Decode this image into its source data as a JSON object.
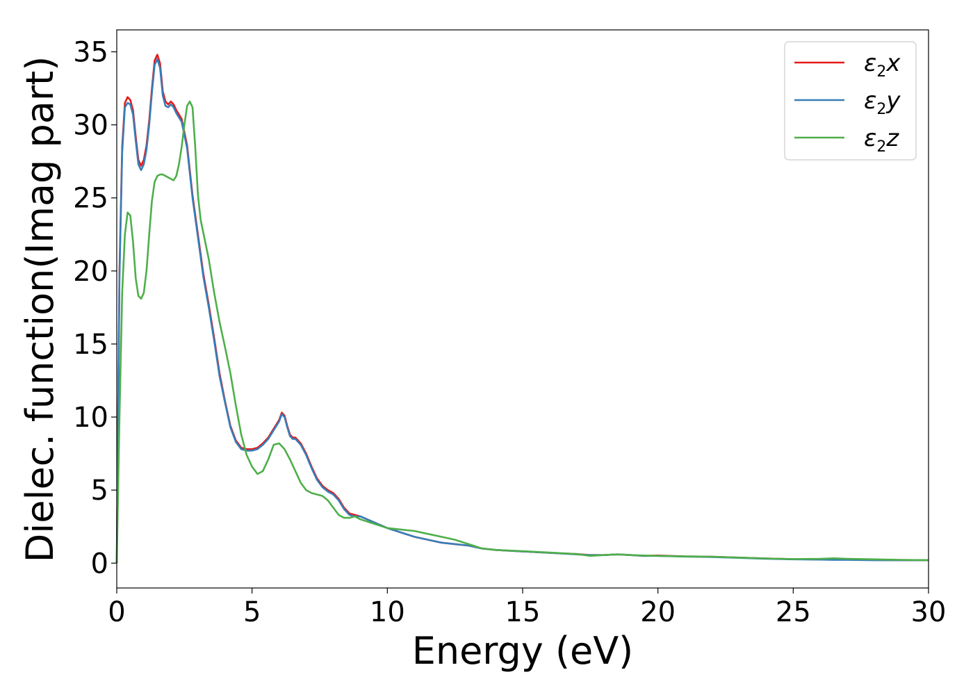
{
  "chart_data": {
    "type": "line",
    "xlabel": "Energy (eV)",
    "ylabel": "Dielec. function(Imag part)",
    "xlim": [
      0,
      30
    ],
    "ylim": [
      -1.7,
      36.5
    ],
    "xticks": [
      0,
      5,
      10,
      15,
      20,
      25,
      30
    ],
    "yticks": [
      0,
      5,
      10,
      15,
      20,
      25,
      30,
      35
    ],
    "grid": false,
    "legend_position": "top-right",
    "series": [
      {
        "name": "ε2x",
        "symbol": "ε",
        "sub": "2",
        "axis": "x",
        "color": "#e41a1c",
        "x": [
          0,
          0.1,
          0.2,
          0.3,
          0.4,
          0.5,
          0.6,
          0.7,
          0.8,
          0.9,
          1.0,
          1.1,
          1.2,
          1.3,
          1.4,
          1.5,
          1.6,
          1.7,
          1.8,
          1.9,
          2.0,
          2.1,
          2.2,
          2.4,
          2.6,
          2.8,
          3.0,
          3.2,
          3.4,
          3.6,
          3.8,
          4.0,
          4.2,
          4.4,
          4.6,
          4.8,
          5.0,
          5.2,
          5.4,
          5.6,
          5.8,
          6.0,
          6.1,
          6.2,
          6.3,
          6.4,
          6.5,
          6.6,
          6.8,
          7.0,
          7.2,
          7.4,
          7.6,
          7.8,
          8.0,
          8.2,
          8.4,
          8.6,
          8.8,
          9.0,
          9.5,
          10.0,
          10.5,
          11.0,
          11.5,
          12.0,
          12.5,
          13.0,
          13.5,
          14.0,
          15.0,
          16.0,
          17.0,
          17.5,
          18.0,
          18.5,
          19.0,
          19.5,
          20.0,
          21.0,
          22.0,
          23.0,
          24.0,
          25.0,
          26.0,
          26.5,
          27.0,
          28.0,
          29.0,
          30.0
        ],
        "y": [
          0,
          20,
          28.5,
          31.5,
          31.9,
          31.7,
          31,
          29.2,
          27.6,
          27.2,
          27.6,
          28.6,
          30.3,
          32.5,
          34.4,
          34.8,
          34.2,
          32.3,
          31.6,
          31.4,
          31.6,
          31.4,
          31,
          30.4,
          28.6,
          25.2,
          22.5,
          19.8,
          17.7,
          15.4,
          13,
          11.1,
          9.4,
          8.4,
          7.9,
          7.8,
          7.8,
          7.9,
          8.2,
          8.6,
          9.2,
          9.8,
          10.3,
          10.1,
          9.4,
          8.8,
          8.6,
          8.6,
          8.2,
          7.5,
          6.6,
          5.8,
          5.3,
          5,
          4.8,
          4.4,
          3.8,
          3.4,
          3.3,
          3.2,
          2.8,
          2.4,
          2.1,
          1.8,
          1.6,
          1.4,
          1.3,
          1.2,
          1.0,
          0.9,
          0.8,
          0.7,
          0.62,
          0.55,
          0.55,
          0.6,
          0.55,
          0.5,
          0.52,
          0.46,
          0.44,
          0.38,
          0.32,
          0.27,
          0.25,
          0.27,
          0.25,
          0.22,
          0.2,
          0.2
        ]
      },
      {
        "name": "ε2y",
        "symbol": "ε",
        "sub": "2",
        "axis": "y",
        "color": "#377eb8",
        "x": [
          0,
          0.1,
          0.2,
          0.3,
          0.4,
          0.5,
          0.6,
          0.7,
          0.8,
          0.9,
          1.0,
          1.1,
          1.2,
          1.3,
          1.4,
          1.5,
          1.6,
          1.7,
          1.8,
          1.9,
          2.0,
          2.1,
          2.2,
          2.4,
          2.6,
          2.8,
          3.0,
          3.2,
          3.4,
          3.6,
          3.8,
          4.0,
          4.2,
          4.4,
          4.6,
          4.8,
          5.0,
          5.2,
          5.4,
          5.6,
          5.8,
          6.0,
          6.1,
          6.2,
          6.3,
          6.4,
          6.5,
          6.6,
          6.8,
          7.0,
          7.2,
          7.4,
          7.6,
          7.8,
          8.0,
          8.2,
          8.4,
          8.6,
          8.8,
          9.0,
          9.5,
          10.0,
          10.5,
          11.0,
          11.5,
          12.0,
          12.5,
          13.0,
          13.5,
          14.0,
          15.0,
          16.0,
          17.0,
          17.5,
          18.0,
          18.5,
          19.0,
          19.5,
          20.0,
          21.0,
          22.0,
          23.0,
          24.0,
          25.0,
          26.0,
          26.5,
          27.0,
          28.0,
          29.0,
          30.0
        ],
        "y": [
          0,
          19.6,
          28.1,
          31.2,
          31.5,
          31.4,
          30.7,
          28.9,
          27.3,
          26.9,
          27.3,
          28.3,
          30,
          32.2,
          34.1,
          34.5,
          33.9,
          32,
          31.3,
          31.2,
          31.4,
          31.2,
          30.8,
          30.2,
          28.4,
          25,
          22.3,
          19.6,
          17.5,
          15.2,
          12.8,
          11,
          9.3,
          8.3,
          7.8,
          7.7,
          7.7,
          7.8,
          8.1,
          8.5,
          9.1,
          9.7,
          10.2,
          10,
          9.3,
          8.7,
          8.5,
          8.5,
          8.1,
          7.4,
          6.5,
          5.7,
          5.2,
          4.9,
          4.7,
          4.3,
          3.7,
          3.3,
          3.2,
          3.2,
          2.8,
          2.4,
          2.1,
          1.8,
          1.6,
          1.4,
          1.3,
          1.2,
          1.0,
          0.9,
          0.8,
          0.7,
          0.6,
          0.55,
          0.55,
          0.6,
          0.55,
          0.5,
          0.5,
          0.45,
          0.42,
          0.36,
          0.3,
          0.26,
          0.24,
          0.22,
          0.22,
          0.2,
          0.2,
          0.2
        ]
      },
      {
        "name": "ε2z",
        "symbol": "ε",
        "sub": "2",
        "axis": "z",
        "color": "#4daf4a",
        "x": [
          0,
          0.1,
          0.2,
          0.3,
          0.4,
          0.5,
          0.6,
          0.7,
          0.8,
          0.9,
          1.0,
          1.1,
          1.2,
          1.3,
          1.4,
          1.5,
          1.6,
          1.7,
          1.8,
          1.9,
          2.0,
          2.1,
          2.2,
          2.3,
          2.4,
          2.5,
          2.6,
          2.7,
          2.8,
          2.9,
          3.0,
          3.1,
          3.2,
          3.4,
          3.6,
          3.8,
          4.0,
          4.2,
          4.4,
          4.6,
          4.8,
          5.0,
          5.2,
          5.4,
          5.6,
          5.8,
          6.0,
          6.2,
          6.4,
          6.6,
          6.8,
          7.0,
          7.2,
          7.4,
          7.6,
          7.8,
          8.0,
          8.2,
          8.4,
          8.6,
          8.8,
          9.0,
          9.5,
          10.0,
          10.5,
          11.0,
          11.5,
          12.0,
          12.5,
          13.0,
          13.5,
          14.0,
          15.0,
          16.0,
          17.0,
          17.5,
          18.0,
          18.5,
          19.0,
          19.5,
          20.0,
          21.0,
          22.0,
          23.0,
          24.0,
          25.0,
          26.0,
          26.5,
          27.0,
          28.0,
          29.0,
          30.0
        ],
        "y": [
          0,
          10,
          18.5,
          22.5,
          24,
          23.8,
          22,
          19.5,
          18.3,
          18.1,
          18.5,
          20,
          22.5,
          24.8,
          26.1,
          26.5,
          26.6,
          26.6,
          26.5,
          26.4,
          26.3,
          26.2,
          26.5,
          27.3,
          28.5,
          30,
          31.3,
          31.6,
          31.2,
          28.5,
          25.2,
          23.5,
          22.6,
          20.8,
          18.5,
          16.5,
          14.8,
          13,
          10.8,
          8.8,
          7.4,
          6.6,
          6.1,
          6.3,
          7.1,
          8.1,
          8.2,
          7.8,
          7.1,
          6.3,
          5.5,
          5.0,
          4.8,
          4.7,
          4.6,
          4.3,
          3.8,
          3.3,
          3.1,
          3.1,
          3.2,
          3.0,
          2.7,
          2.4,
          2.3,
          2.2,
          2.0,
          1.8,
          1.6,
          1.3,
          1.0,
          0.9,
          0.82,
          0.72,
          0.62,
          0.5,
          0.55,
          0.6,
          0.55,
          0.52,
          0.5,
          0.46,
          0.44,
          0.38,
          0.32,
          0.28,
          0.3,
          0.33,
          0.3,
          0.26,
          0.22,
          0.2
        ]
      }
    ]
  }
}
